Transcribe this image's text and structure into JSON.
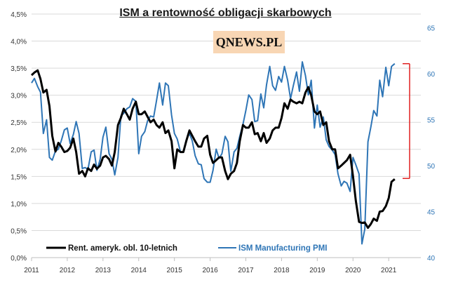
{
  "chart_data": {
    "type": "line",
    "title": "ISM a rentowność obligacji skarbowych",
    "logo_text": "QNEWS.PL",
    "x_ticks": [
      "2011",
      "2012",
      "2013",
      "2014",
      "2015",
      "2016",
      "2017",
      "2018",
      "2019",
      "2020",
      "2021"
    ],
    "y_left": {
      "ticks": [
        "0,0%",
        "0,5%",
        "1,0%",
        "1,5%",
        "2,0%",
        "2,5%",
        "3,0%",
        "3,5%",
        "4,0%",
        "4,5%"
      ],
      "range": [
        0,
        4.5
      ]
    },
    "y_right": {
      "ticks": [
        "40",
        "45",
        "50",
        "55",
        "60",
        "65"
      ],
      "range": [
        40,
        66.5
      ]
    },
    "legend_position": "bottom-left",
    "grid": true,
    "series": [
      {
        "name": "Rent. ameryk. obl. 10-letnich",
        "axis": "left",
        "color": "#000000",
        "x": [
          2011.0,
          2011.08,
          2011.17,
          2011.25,
          2011.33,
          2011.42,
          2011.5,
          2011.58,
          2011.67,
          2011.75,
          2011.83,
          2011.92,
          2012.0,
          2012.08,
          2012.17,
          2012.25,
          2012.33,
          2012.42,
          2012.5,
          2012.58,
          2012.67,
          2012.75,
          2012.83,
          2012.92,
          2013.0,
          2013.08,
          2013.17,
          2013.25,
          2013.33,
          2013.42,
          2013.5,
          2013.58,
          2013.67,
          2013.75,
          2013.83,
          2013.92,
          2014.0,
          2014.08,
          2014.17,
          2014.25,
          2014.33,
          2014.42,
          2014.5,
          2014.58,
          2014.67,
          2014.75,
          2014.83,
          2014.92,
          2015.0,
          2015.08,
          2015.17,
          2015.25,
          2015.33,
          2015.42,
          2015.5,
          2015.58,
          2015.67,
          2015.75,
          2015.83,
          2015.92,
          2016.0,
          2016.08,
          2016.17,
          2016.25,
          2016.33,
          2016.42,
          2016.5,
          2016.58,
          2016.67,
          2016.75,
          2016.83,
          2016.92,
          2017.0,
          2017.08,
          2017.17,
          2017.25,
          2017.33,
          2017.42,
          2017.5,
          2017.58,
          2017.67,
          2017.75,
          2017.83,
          2017.92,
          2018.0,
          2018.08,
          2018.17,
          2018.25,
          2018.33,
          2018.42,
          2018.5,
          2018.58,
          2018.67,
          2018.75,
          2018.83,
          2018.92,
          2019.0,
          2019.08,
          2019.17,
          2019.25,
          2019.33,
          2019.42,
          2019.5,
          2019.58,
          2019.67,
          2019.75,
          2019.83,
          2019.92,
          2020.0,
          2020.08,
          2020.17,
          2020.25,
          2020.33,
          2020.42,
          2020.5,
          2020.58,
          2020.67,
          2020.75,
          2020.83,
          2020.92,
          2021.0,
          2021.08,
          2021.17
        ],
        "values": [
          3.37,
          3.42,
          3.46,
          3.3,
          3.05,
          3.1,
          2.8,
          2.25,
          1.96,
          2.12,
          2.05,
          1.95,
          1.97,
          2.03,
          2.2,
          1.95,
          1.55,
          1.6,
          1.5,
          1.65,
          1.6,
          1.72,
          1.64,
          1.7,
          1.85,
          1.88,
          1.82,
          1.7,
          1.95,
          2.45,
          2.58,
          2.75,
          2.65,
          2.55,
          2.75,
          2.88,
          2.65,
          2.65,
          2.7,
          2.6,
          2.5,
          2.55,
          2.45,
          2.4,
          2.5,
          2.3,
          2.35,
          2.15,
          1.65,
          2.0,
          1.95,
          1.95,
          2.15,
          2.35,
          2.25,
          2.15,
          2.05,
          2.05,
          2.2,
          2.25,
          1.9,
          1.75,
          1.8,
          1.85,
          1.85,
          1.6,
          1.45,
          1.55,
          1.6,
          1.75,
          2.15,
          2.45,
          2.4,
          2.4,
          2.5,
          2.28,
          2.3,
          2.15,
          2.3,
          2.12,
          2.2,
          2.35,
          2.4,
          2.4,
          2.58,
          2.85,
          2.75,
          2.92,
          2.88,
          2.85,
          2.88,
          2.85,
          3.05,
          3.15,
          3.0,
          2.7,
          2.65,
          2.7,
          2.45,
          2.5,
          2.15,
          2.0,
          2.0,
          1.65,
          1.7,
          1.75,
          1.8,
          1.9,
          1.5,
          1.05,
          0.66,
          0.64,
          0.65,
          0.55,
          0.62,
          0.72,
          0.68,
          0.85,
          0.86,
          0.95,
          1.1,
          1.4,
          1.45
        ]
      },
      {
        "name": "ISM Manufacturing PMI",
        "axis": "right",
        "color": "#2e75b6",
        "x": [
          2011.0,
          2011.08,
          2011.17,
          2011.25,
          2011.33,
          2011.42,
          2011.5,
          2011.58,
          2011.67,
          2011.75,
          2011.83,
          2011.92,
          2012.0,
          2012.08,
          2012.17,
          2012.25,
          2012.33,
          2012.42,
          2012.5,
          2012.58,
          2012.67,
          2012.75,
          2012.83,
          2012.92,
          2013.0,
          2013.08,
          2013.17,
          2013.25,
          2013.33,
          2013.42,
          2013.5,
          2013.58,
          2013.67,
          2013.75,
          2013.83,
          2013.92,
          2014.0,
          2014.08,
          2014.17,
          2014.25,
          2014.33,
          2014.42,
          2014.5,
          2014.58,
          2014.67,
          2014.75,
          2014.83,
          2014.92,
          2015.0,
          2015.08,
          2015.17,
          2015.25,
          2015.33,
          2015.42,
          2015.5,
          2015.58,
          2015.67,
          2015.75,
          2015.83,
          2015.92,
          2016.0,
          2016.08,
          2016.17,
          2016.25,
          2016.33,
          2016.42,
          2016.5,
          2016.58,
          2016.67,
          2016.75,
          2016.83,
          2016.92,
          2017.0,
          2017.08,
          2017.17,
          2017.25,
          2017.33,
          2017.42,
          2017.5,
          2017.58,
          2017.67,
          2017.75,
          2017.83,
          2017.92,
          2018.0,
          2018.08,
          2018.17,
          2018.25,
          2018.33,
          2018.42,
          2018.5,
          2018.58,
          2018.67,
          2018.75,
          2018.83,
          2018.92,
          2019.0,
          2019.08,
          2019.17,
          2019.25,
          2019.33,
          2019.42,
          2019.5,
          2019.58,
          2019.67,
          2019.75,
          2019.83,
          2019.92,
          2020.0,
          2020.08,
          2020.17,
          2020.25,
          2020.33,
          2020.42,
          2020.5,
          2020.58,
          2020.67,
          2020.75,
          2020.83,
          2020.92,
          2021.0,
          2021.08,
          2021.17
        ],
        "values": [
          59.0,
          59.5,
          58.6,
          58.0,
          53.5,
          55.0,
          50.9,
          50.6,
          51.6,
          51.8,
          52.7,
          53.9,
          54.1,
          52.4,
          53.4,
          54.8,
          53.5,
          49.7,
          49.8,
          49.6,
          51.5,
          51.7,
          49.5,
          50.7,
          53.1,
          54.2,
          51.3,
          50.7,
          49.0,
          50.9,
          55.4,
          55.7,
          56.2,
          56.4,
          57.3,
          57.0,
          51.3,
          53.2,
          53.7,
          54.9,
          55.4,
          55.3,
          57.1,
          59.0,
          56.6,
          59.0,
          58.7,
          55.5,
          53.5,
          52.9,
          51.5,
          51.5,
          52.8,
          53.5,
          52.7,
          51.1,
          50.2,
          50.1,
          48.6,
          48.2,
          48.2,
          49.5,
          51.8,
          50.8,
          51.3,
          53.2,
          52.6,
          49.4,
          51.5,
          51.9,
          53.2,
          54.5,
          56.0,
          57.7,
          57.2,
          54.8,
          54.9,
          57.8,
          56.3,
          58.8,
          60.8,
          58.7,
          58.2,
          59.7,
          59.1,
          60.8,
          59.3,
          57.3,
          58.7,
          60.2,
          58.1,
          61.3,
          59.8,
          57.7,
          59.3,
          54.1,
          56.6,
          54.2,
          55.3,
          52.8,
          52.1,
          51.7,
          51.2,
          49.1,
          47.8,
          48.3,
          48.1,
          47.2,
          50.9,
          50.1,
          49.1,
          41.5,
          43.1,
          52.6,
          54.2,
          56.0,
          55.4,
          59.3,
          57.5,
          60.7,
          58.7,
          60.8,
          61.1
        ]
      }
    ],
    "bracket_color": "#e02020"
  }
}
